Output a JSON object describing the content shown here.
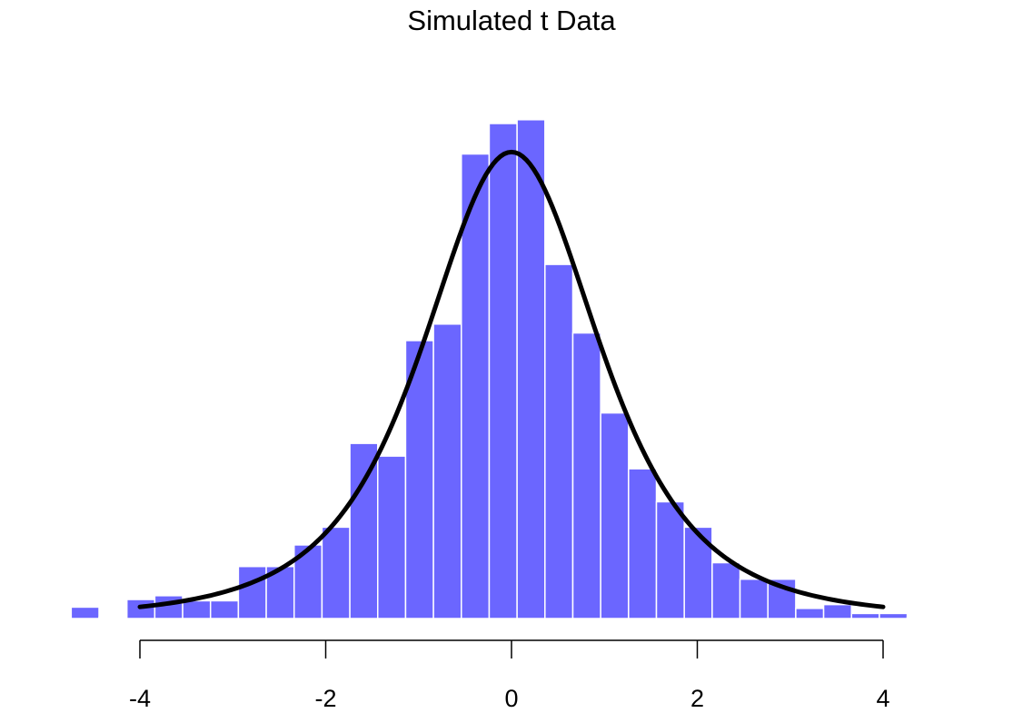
{
  "chart_data": {
    "type": "bar",
    "subtype": "histogram-with-density-curve",
    "title": "Simulated t Data",
    "xlabel": "",
    "ylabel": "",
    "xlim": [
      -5.42,
      5.42
    ],
    "ylim": [
      0,
      0.4
    ],
    "x_ticks": [
      -4,
      -2,
      0,
      2,
      4
    ],
    "x_tick_labels": [
      "-4",
      "-2",
      "0",
      "2",
      "4"
    ],
    "y_axis_shown": false,
    "grid": false,
    "bin_width": 0.3,
    "bins": [
      {
        "start": -5.64,
        "density": 0.001
      },
      {
        "start": -5.34,
        "density": 0
      },
      {
        "start": -5.04,
        "density": 0
      },
      {
        "start": -4.74,
        "density": 0.009
      },
      {
        "start": -4.44,
        "density": 0.001
      },
      {
        "start": -4.14,
        "density": 0.015
      },
      {
        "start": -3.84,
        "density": 0.018
      },
      {
        "start": -3.54,
        "density": 0.014
      },
      {
        "start": -3.24,
        "density": 0.014
      },
      {
        "start": -2.94,
        "density": 0.041
      },
      {
        "start": -2.64,
        "density": 0.041
      },
      {
        "start": -2.34,
        "density": 0.058
      },
      {
        "start": -2.04,
        "density": 0.072
      },
      {
        "start": -1.74,
        "density": 0.138
      },
      {
        "start": -1.44,
        "density": 0.128
      },
      {
        "start": -1.14,
        "density": 0.219
      },
      {
        "start": -0.84,
        "density": 0.232
      },
      {
        "start": -0.54,
        "density": 0.366
      },
      {
        "start": -0.24,
        "density": 0.39
      },
      {
        "start": 0.06,
        "density": 0.393
      },
      {
        "start": 0.36,
        "density": 0.279
      },
      {
        "start": 0.66,
        "density": 0.225
      },
      {
        "start": 0.96,
        "density": 0.162
      },
      {
        "start": 1.26,
        "density": 0.118
      },
      {
        "start": 1.56,
        "density": 0.092
      },
      {
        "start": 1.86,
        "density": 0.072
      },
      {
        "start": 2.16,
        "density": 0.044
      },
      {
        "start": 2.46,
        "density": 0.031
      },
      {
        "start": 2.76,
        "density": 0.031
      },
      {
        "start": 3.06,
        "density": 0.008
      },
      {
        "start": 3.36,
        "density": 0.011
      },
      {
        "start": 3.66,
        "density": 0.004
      },
      {
        "start": 3.96,
        "density": 0.004
      },
      {
        "start": 4.26,
        "density": 0.001
      },
      {
        "start": 4.56,
        "density": 0.001
      },
      {
        "start": 4.86,
        "density": 0.001
      },
      {
        "start": 5.16,
        "density": 0.001
      }
    ],
    "curve": {
      "name": "t density",
      "df": 3,
      "x_range": [
        -4,
        4
      ],
      "color": "#000000"
    },
    "bar_color": "#6b66ff",
    "bar_border_color": "#ffffff"
  }
}
